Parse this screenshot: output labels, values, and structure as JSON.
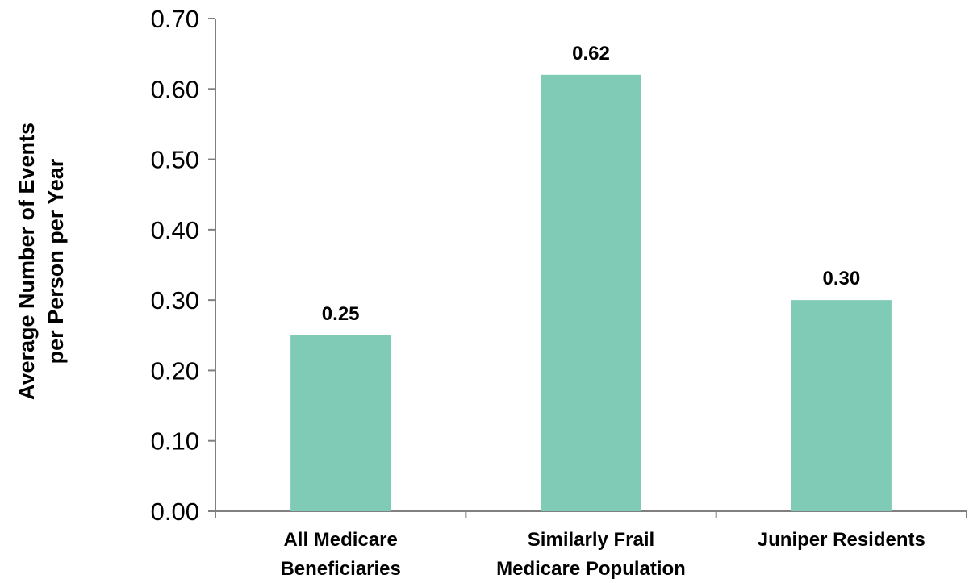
{
  "chart_data": {
    "type": "bar",
    "categories": [
      [
        "All Medicare",
        "Beneficiaries"
      ],
      [
        "Similarly Frail",
        "Medicare Population"
      ],
      [
        "Juniper Residents"
      ]
    ],
    "values": [
      0.25,
      0.62,
      0.3
    ],
    "data_labels": [
      "0.25",
      "0.62",
      "0.30"
    ],
    "ylabel_lines": [
      "Average Number of Events",
      "per Person per Year"
    ],
    "xlabel": "",
    "ylim": [
      0,
      0.7
    ],
    "yticks": [
      0.0,
      0.1,
      0.2,
      0.3,
      0.4,
      0.5,
      0.6,
      0.7
    ],
    "ytick_labels": [
      "0.00",
      "0.10",
      "0.20",
      "0.30",
      "0.40",
      "0.50",
      "0.60",
      "0.70"
    ],
    "grid": false,
    "legend": "none",
    "colors": {
      "bar": "#80cbb6",
      "axis": "#808080"
    }
  }
}
